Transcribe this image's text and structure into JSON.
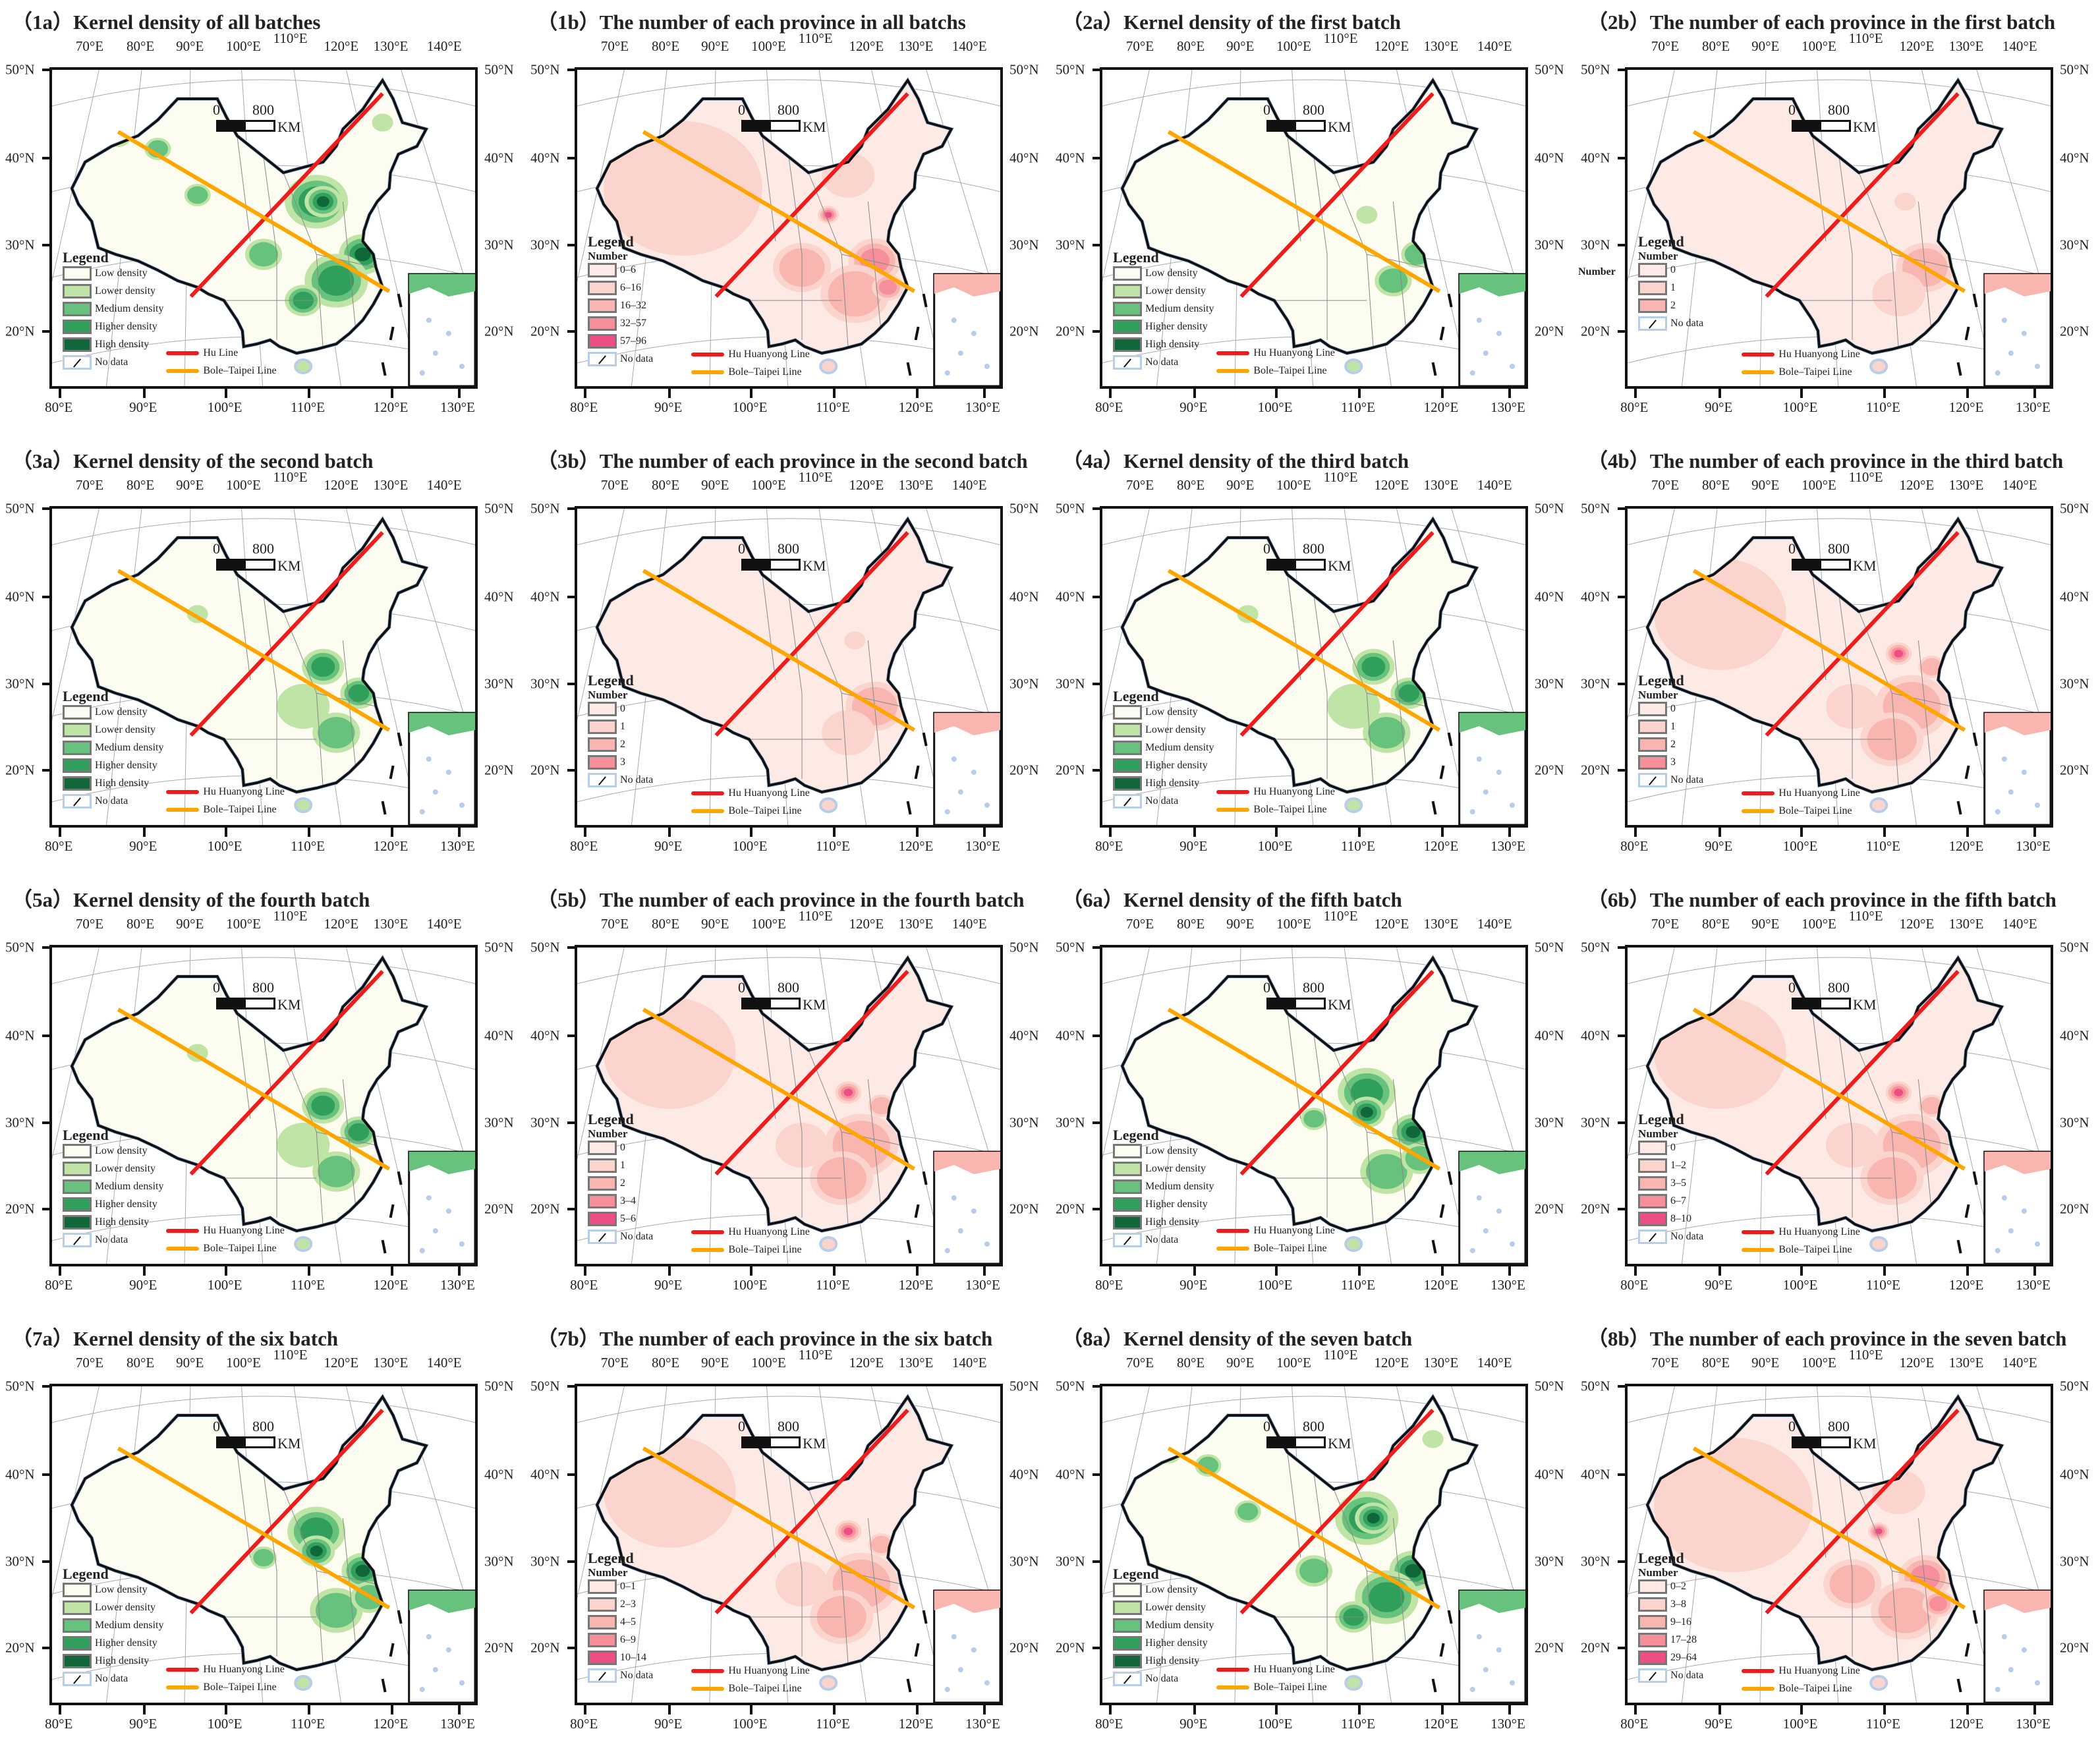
{
  "common": {
    "legend_heading": "Legend",
    "number_heading": "Number",
    "no_data": "No data",
    "scale_zero": "0",
    "scale_max": "800",
    "scale_unit": "KM",
    "lat_labels": [
      "50°N",
      "40°N",
      "30°N",
      "20°N"
    ],
    "lon_top": [
      "70°E",
      "80°E",
      "90°E",
      "100°E",
      "110°E",
      "120°E",
      "130°E",
      "140°E"
    ],
    "lon_bottom": [
      "80°E",
      "90°E",
      "100°E",
      "110°E",
      "120°E",
      "130°E"
    ],
    "density_legend": [
      "Low density",
      "Lower density",
      "Medium density",
      "Higher density",
      "High density"
    ],
    "bole_line": "Bole–Taipei Line"
  },
  "colors": {
    "density": [
      "#fcfdf0",
      "#bfe4a6",
      "#66c27c",
      "#2f9f5b",
      "#10673a"
    ],
    "number": [
      "#fdeae5",
      "#fbd4cd",
      "#f9b6b1",
      "#f68e9b",
      "#ee4e86"
    ],
    "hu_line": "#ee1c1c",
    "bole_line": "#ffa500",
    "coast": "#b8cdec"
  },
  "panels": [
    {
      "title": "（1a）Kernel density of all batches",
      "type": "density",
      "hu_line": "Hu Line",
      "level": 4
    },
    {
      "title": "（1b）The number of each province in all batchs",
      "type": "number",
      "hu_line": "Hu Huanyong Line",
      "legend": [
        "0–6",
        "6–16",
        "16–32",
        "32–57",
        "57–96"
      ],
      "level": 4
    },
    {
      "title": "（2a）Kernel density of the first batch",
      "type": "density",
      "hu_line": "Hu Huanyong Line",
      "level": 1
    },
    {
      "title": "（2b）The number of each province in the first batch",
      "type": "number",
      "hu_line": "Hu Huanyong Line",
      "legend": [
        "0",
        "1",
        "2"
      ],
      "extra_label": "Number",
      "level": 2
    },
    {
      "title": "（3a）Kernel density of the second batch",
      "type": "density",
      "hu_line": "Hu Huanyong Line",
      "level": 2
    },
    {
      "title": "（3b）The number of each province in the second batch",
      "type": "number",
      "hu_line": "Hu Huanyong Line",
      "legend": [
        "0",
        "1",
        "2",
        "3"
      ],
      "level": 2
    },
    {
      "title": "（4a）Kernel density of the third batch",
      "type": "density",
      "hu_line": "Hu Huanyong Line",
      "level": 2
    },
    {
      "title": "（4b）The number of each province in the third batch",
      "type": "number",
      "hu_line": "Hu Huanyong Line",
      "legend": [
        "0",
        "1",
        "2",
        "3"
      ],
      "level": 3
    },
    {
      "title": "（5a）Kernel density of the fourth batch",
      "type": "density",
      "hu_line": "Hu Huanyong Line",
      "level": 2
    },
    {
      "title": "（5b）The number of each province in the fourth batch",
      "type": "number",
      "hu_line": "Hu Huanyong Line",
      "legend": [
        "0",
        "1",
        "2",
        "3–4",
        "5–6"
      ],
      "level": 3
    },
    {
      "title": "（6a）Kernel density of the fifth batch",
      "type": "density",
      "hu_line": "Hu Huanyong Line",
      "level": 3
    },
    {
      "title": "（6b）The number of each province in the fifth batch",
      "type": "number",
      "hu_line": "Hu Huanyong Line",
      "legend": [
        "0",
        "1–2",
        "3–5",
        "6–7",
        "8–10"
      ],
      "level": 3
    },
    {
      "title": "（7a）Kernel density of the six batch",
      "type": "density",
      "hu_line": "Hu Huanyong Line",
      "level": 3
    },
    {
      "title": "（7b）The number of each province in the six batch",
      "type": "number",
      "hu_line": "Hu Huanyong Line",
      "legend": [
        "0–1",
        "2–3",
        "4–5",
        "6–9",
        "10–14"
      ],
      "level": 3
    },
    {
      "title": "（8a）Kernel density of the seven batch",
      "type": "density",
      "hu_line": "Hu Huanyong Line",
      "level": 4
    },
    {
      "title": "（8b）The number of each province in the seven batch",
      "type": "number",
      "hu_line": "Hu Huanyong Line",
      "legend": [
        "0–2",
        "3–8",
        "9–16",
        "17–28",
        "29–64"
      ],
      "level": 4
    }
  ]
}
